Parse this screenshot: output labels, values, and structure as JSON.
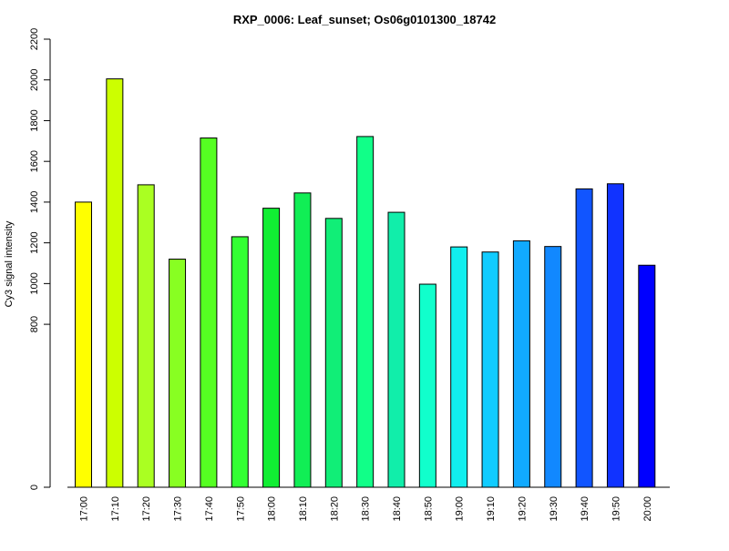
{
  "chart_data": {
    "type": "bar",
    "title": "RXP_0006: Leaf_sunset; Os06g0101300_18742",
    "xlabel": "",
    "ylabel": "Cy3 signal intensity",
    "ylim": [
      0,
      2200
    ],
    "yticks": [
      0,
      800,
      1000,
      1200,
      1400,
      1600,
      1800,
      2000,
      2200
    ],
    "grid": false,
    "categories": [
      "17:00",
      "17:10",
      "17:20",
      "17:30",
      "17:40",
      "17:50",
      "18:00",
      "18:10",
      "18:20",
      "18:30",
      "18:40",
      "18:50",
      "19:00",
      "19:10",
      "19:20",
      "19:30",
      "19:40",
      "19:50",
      "20:00"
    ],
    "values": [
      1400,
      2005,
      1485,
      1120,
      1715,
      1230,
      1370,
      1445,
      1320,
      1722,
      1350,
      997,
      1180,
      1155,
      1210,
      1182,
      1465,
      1490,
      1090
    ],
    "colors": [
      "#ffff00",
      "#ccff00",
      "#aaff22",
      "#88ff22",
      "#55ff22",
      "#33ff33",
      "#11ee33",
      "#11ee55",
      "#11ee77",
      "#11ff88",
      "#11eeaa",
      "#11ffcc",
      "#11eeee",
      "#11ccff",
      "#11aaff",
      "#1188ff",
      "#1155ff",
      "#1133ff",
      "#0000ff"
    ]
  }
}
